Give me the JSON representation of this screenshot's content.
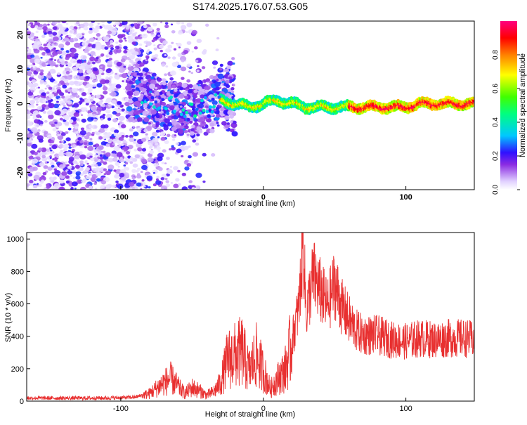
{
  "title": "S174.2025.176.07.53.G05",
  "chart_data": [
    {
      "type": "heatmap",
      "xlabel": "Height of straight line (km)",
      "ylabel": "Frequency (Hz)",
      "xlim": [
        -166,
        148
      ],
      "ylim": [
        -25,
        24
      ],
      "xticks": [
        -100,
        0,
        100
      ],
      "yticks": [
        -20,
        -10,
        0,
        10,
        20
      ],
      "colorbar": {
        "label": "Normalized spectral amplitude",
        "range": [
          0,
          1
        ],
        "ticks": [
          0.0,
          0.2,
          0.4,
          0.6,
          0.8
        ]
      },
      "ridge": [
        {
          "x": -85,
          "y": 2
        },
        {
          "x": -80,
          "y": 1
        },
        {
          "x": -70,
          "y": 0
        },
        {
          "x": -60,
          "y": -1
        },
        {
          "x": -50,
          "y": -2
        },
        {
          "x": -40,
          "y": -1
        },
        {
          "x": -30,
          "y": 1
        },
        {
          "x": -20,
          "y": 0
        },
        {
          "x": -10,
          "y": -1
        },
        {
          "x": 0,
          "y": 0
        },
        {
          "x": 10,
          "y": 1
        },
        {
          "x": 20,
          "y": 0
        },
        {
          "x": 30,
          "y": -1
        },
        {
          "x": 40,
          "y": -1
        },
        {
          "x": 50,
          "y": -1
        },
        {
          "x": 60,
          "y": -1
        },
        {
          "x": 70,
          "y": -1
        },
        {
          "x": 80,
          "y": -1
        },
        {
          "x": 90,
          "y": -1
        },
        {
          "x": 100,
          "y": -1
        },
        {
          "x": 110,
          "y": 0
        },
        {
          "x": 120,
          "y": 0
        },
        {
          "x": 130,
          "y": 0
        },
        {
          "x": 140,
          "y": 0
        },
        {
          "x": 148,
          "y": 0
        }
      ]
    },
    {
      "type": "line",
      "xlabel": "Height of straight line (km)",
      "ylabel": "SNR (10 * v/v)",
      "xlim": [
        -166,
        148
      ],
      "ylim": [
        0,
        1040
      ],
      "xticks": [
        -100,
        0,
        100
      ],
      "yticks": [
        0,
        200,
        400,
        600,
        800,
        1000
      ],
      "color": "#e83030",
      "series": [
        {
          "x": [
            -166,
            -150,
            -130,
            -110,
            -90,
            -80,
            -70,
            -65,
            -60,
            -55,
            -50,
            -45,
            -40,
            -35,
            -30,
            -25,
            -20,
            -15,
            -10,
            -5,
            0,
            5,
            10,
            15,
            20,
            25,
            28,
            30,
            35,
            40,
            45,
            50,
            55,
            60,
            65,
            70,
            80,
            90,
            100,
            110,
            120,
            130,
            140,
            148
          ],
          "values": [
            20,
            20,
            20,
            20,
            25,
            50,
            120,
            150,
            100,
            50,
            90,
            70,
            40,
            60,
            120,
            280,
            300,
            330,
            200,
            300,
            200,
            80,
            150,
            200,
            380,
            600,
            1040,
            550,
            800,
            700,
            600,
            750,
            600,
            520,
            450,
            420,
            420,
            390,
            380,
            400,
            390,
            400,
            400,
            390
          ]
        }
      ]
    }
  ]
}
